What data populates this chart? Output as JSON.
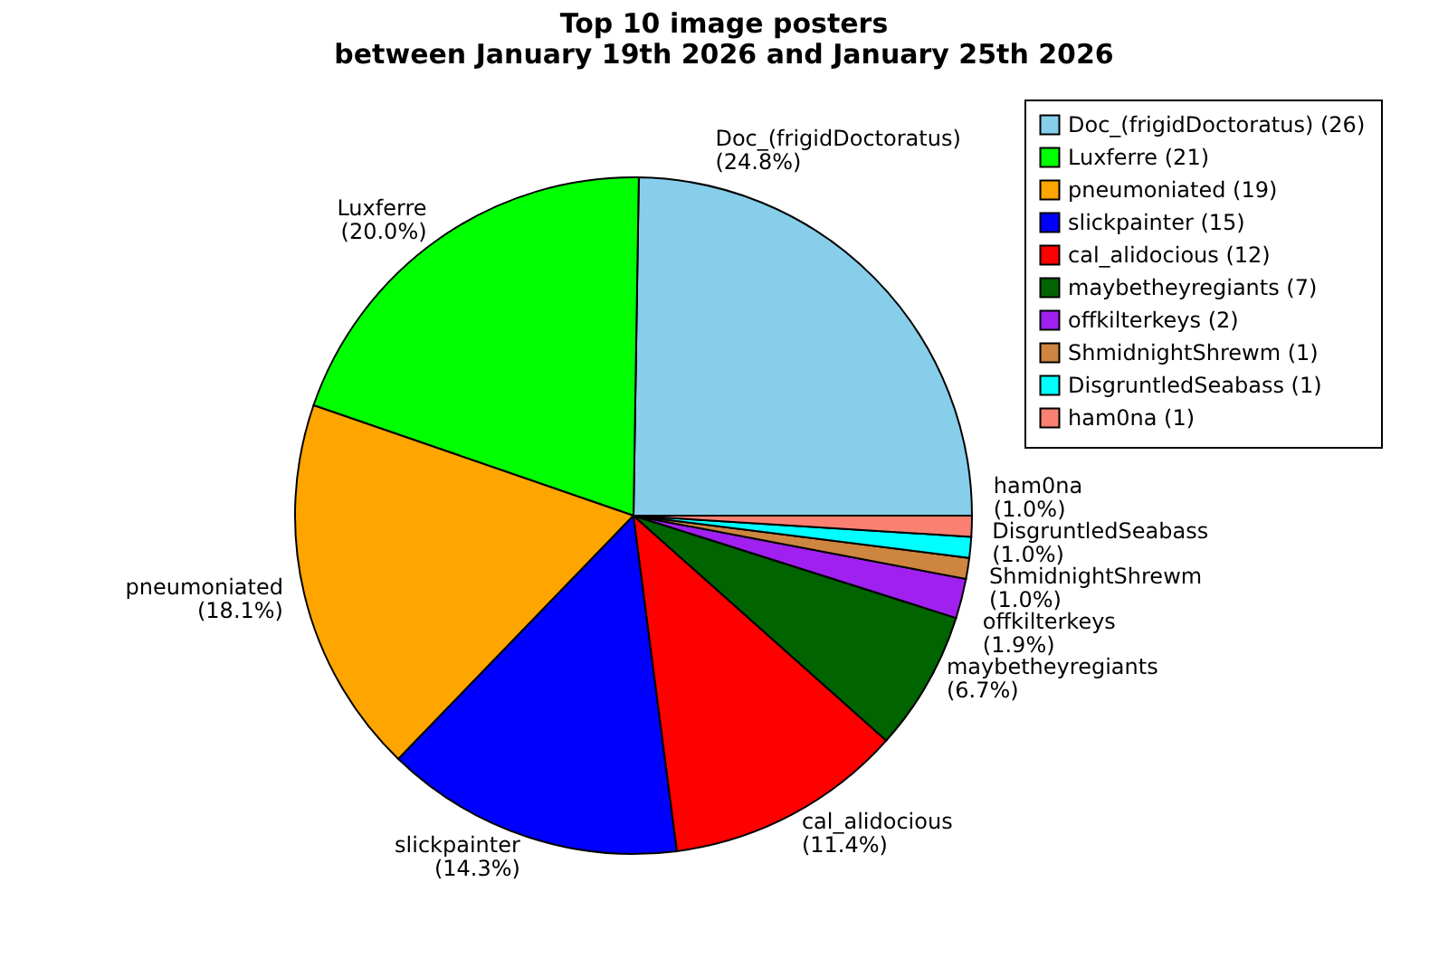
{
  "chart_data": {
    "type": "pie",
    "title": "Top 10 image posters\nbetween January 19th 2026 and January 25th 2026",
    "categories": [
      "Doc_(frigidDoctoratus) (26)",
      "Luxferre (21)",
      "pneumoniated (19)",
      "slickpainter (15)",
      "cal_alidocious (12)",
      "maybetheyregiants (7)",
      "offkilterkeys (2)",
      "ShmidnightShrewm (1)",
      "DisgruntledSeabass (1)",
      "ham0na (1)"
    ],
    "values": [
      24.8,
      20.0,
      18.1,
      14.3,
      11.4,
      6.7,
      1.9,
      1.0,
      1.0,
      1.0
    ],
    "colors": [
      "#87ceeb",
      "#00ff00",
      "#ffa500",
      "#0000ff",
      "#ff0000",
      "#006400",
      "#a020f0",
      "#cd853f",
      "#00ffff",
      "#fa8072"
    ],
    "value_labels": [
      "(24.8%)",
      "(20.0%)",
      "(18.1%)",
      "(14.3%)",
      "(11.4%)",
      "(6.7%)",
      "(1.9%)",
      "(1.0%)",
      "(1.0%)",
      "(1.0%)"
    ],
    "annotations": [
      "Doc_(frigidDoctoratus)",
      "Luxferre",
      "pneumoniated",
      "slickpainter",
      "cal_alidocious",
      "maybetheyregiants",
      "offkilterkeys",
      "ShmidnightShrewm",
      "DisgruntledSeabass",
      "ham0na"
    ],
    "legend": "top right"
  }
}
